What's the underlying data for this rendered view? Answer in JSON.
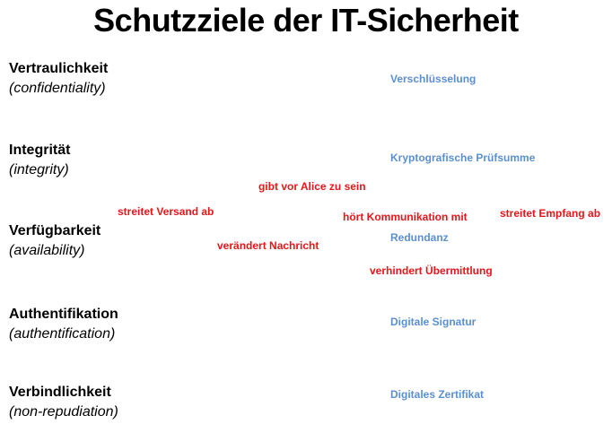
{
  "title": "Schutzziele der IT-Sicherheit",
  "goals": [
    {
      "name": "Vertraulichkeit",
      "english": "(confidentiality)"
    },
    {
      "name": "Integrität",
      "english": "(integrity)"
    },
    {
      "name": "Verfügbarkeit",
      "english": "(availability)"
    },
    {
      "name": "Authentifikation",
      "english": "(authentification)"
    },
    {
      "name": "Verbindlichkeit",
      "english": "(non-repudiation)"
    }
  ],
  "measures": [
    "Verschlüsselung",
    "Kryptografische Prüfsumme",
    "Redundanz",
    "Digitale Signatur",
    "Digitales Zertifikat"
  ],
  "threats": [
    "gibt vor Alice zu sein",
    "streitet Versand ab",
    "hört Kommunikation mit",
    "streitet Empfang ab",
    "verändert Nachricht",
    "verhindert Übermittlung"
  ],
  "colors": {
    "goal_text": "#000000",
    "measure_text": "#5b8fd0",
    "threat_text": "#e8151a"
  }
}
